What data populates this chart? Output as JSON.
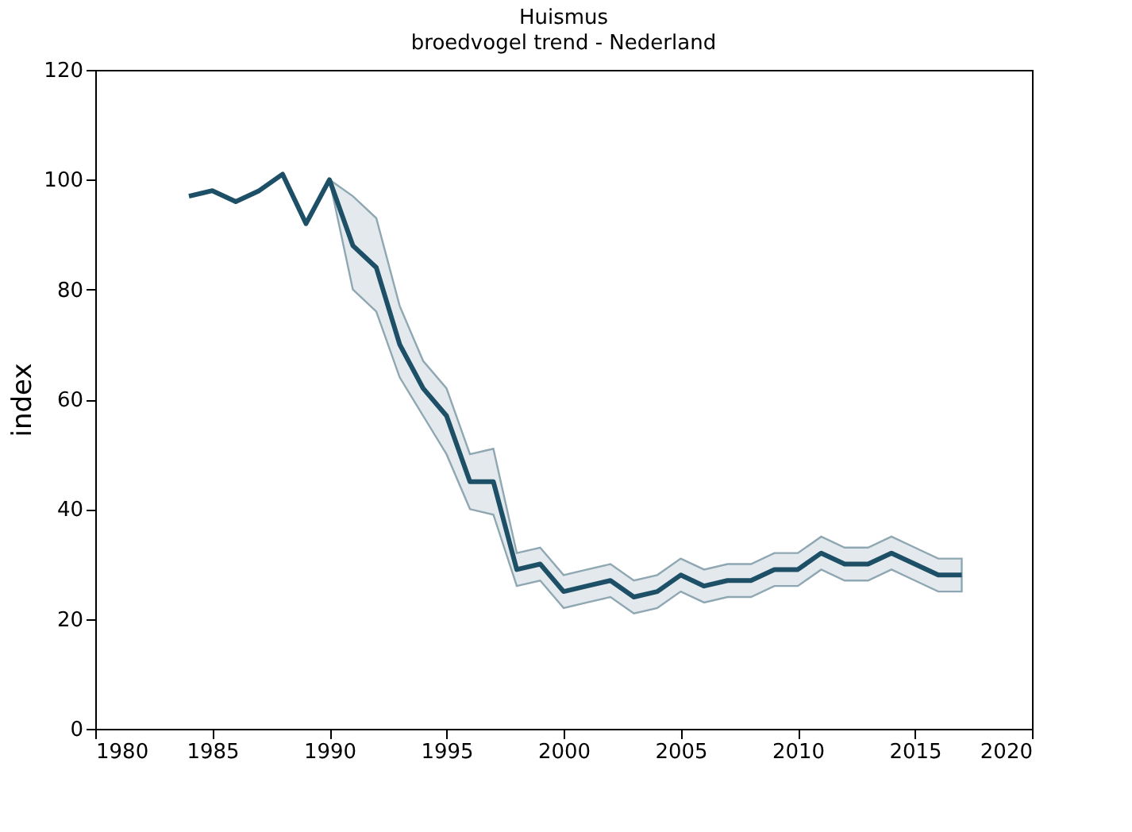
{
  "chart_data": {
    "type": "line",
    "title": "Huismus",
    "subtitle": "broedvogel trend - Nederland",
    "ylabel": "index",
    "x": [
      1984,
      1985,
      1986,
      1987,
      1988,
      1989,
      1990,
      1991,
      1992,
      1993,
      1994,
      1995,
      1996,
      1997,
      1998,
      1999,
      2000,
      2001,
      2002,
      2003,
      2004,
      2005,
      2006,
      2007,
      2008,
      2009,
      2010,
      2011,
      2012,
      2013,
      2014,
      2015,
      2016,
      2017
    ],
    "series": [
      {
        "color": "#1d4f66",
        "values": [
          97,
          98,
          96,
          98,
          101,
          92,
          100,
          88,
          84,
          70,
          62,
          57,
          45,
          45,
          29,
          30,
          25,
          26,
          27,
          24,
          25,
          28,
          26,
          27,
          27,
          29,
          29,
          32,
          30,
          30,
          32,
          30,
          28,
          28
        ],
        "lower": [
          null,
          null,
          null,
          null,
          null,
          null,
          100,
          80,
          76,
          64,
          57,
          50,
          40,
          39,
          26,
          27,
          22,
          23,
          24,
          21,
          22,
          25,
          23,
          24,
          24,
          26,
          26,
          29,
          27,
          27,
          29,
          27,
          25,
          25
        ],
        "upper": [
          null,
          null,
          null,
          null,
          null,
          null,
          100,
          97,
          93,
          77,
          67,
          62,
          50,
          51,
          32,
          33,
          28,
          29,
          30,
          27,
          28,
          31,
          29,
          30,
          30,
          32,
          32,
          35,
          33,
          33,
          35,
          33,
          31,
          31
        ]
      }
    ],
    "xlim": [
      1980,
      2020
    ],
    "xticks": [
      1980,
      1985,
      1990,
      1995,
      2000,
      2005,
      2010,
      2015,
      2020
    ],
    "ylim": [
      0,
      120
    ],
    "yticks": [
      0,
      20,
      40,
      60,
      80,
      100,
      120
    ],
    "grid": false,
    "marker": "none",
    "line_style": "solid"
  }
}
